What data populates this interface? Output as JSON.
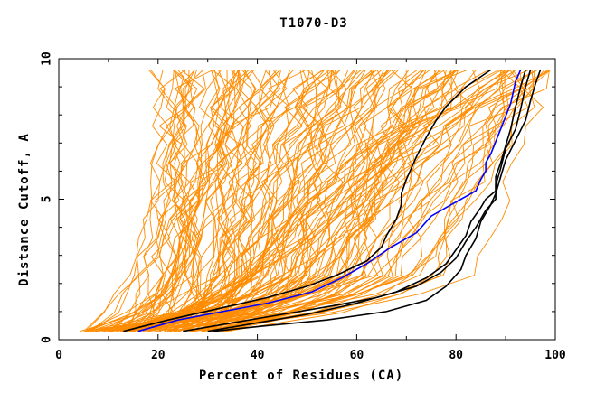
{
  "chart_data": {
    "type": "line",
    "title": "T1070-D3",
    "xlabel": "Percent of Residues (CA)",
    "ylabel": "Distance Cutoff, A",
    "xlim": [
      0,
      100
    ],
    "ylim": [
      0,
      10
    ],
    "x_ticks": [
      "0",
      "20",
      "40",
      "60",
      "80",
      "100"
    ],
    "y_ticks": [
      "0",
      "5",
      "10"
    ],
    "grid": false,
    "legend": "none",
    "colors": {
      "background_models": "#ff8c00",
      "highlight_models": "#000000",
      "best_model": "#0000ff"
    },
    "background_models_count": 150,
    "series": [
      {
        "color": "#0000ff",
        "x": [
          16,
          24,
          33,
          42,
          51,
          57,
          62,
          67,
          72,
          75,
          79,
          82,
          84,
          85,
          86,
          86,
          87,
          89,
          91,
          92,
          93
        ],
        "y": [
          0.3,
          0.7,
          1.0,
          1.3,
          1.7,
          2.2,
          2.7,
          3.3,
          3.8,
          4.4,
          4.8,
          5.1,
          5.3,
          5.7,
          6.0,
          6.3,
          6.6,
          7.5,
          8.4,
          9.2,
          9.6
        ]
      },
      {
        "color": "#000000",
        "x": [
          13,
          22,
          32,
          42,
          50,
          56,
          62,
          65,
          66,
          68,
          69,
          69,
          70,
          72,
          74,
          76,
          78,
          82,
          87
        ],
        "y": [
          0.3,
          0.7,
          1.1,
          1.5,
          1.9,
          2.3,
          2.8,
          3.3,
          3.7,
          4.3,
          4.8,
          5.2,
          5.7,
          6.5,
          7.2,
          7.8,
          8.3,
          9.0,
          9.6
        ]
      },
      {
        "color": "#000000",
        "x": [
          30,
          40,
          50,
          60,
          68,
          74,
          78,
          80,
          82,
          83,
          85,
          86,
          88,
          88,
          89,
          90,
          91,
          92,
          93,
          94
        ],
        "y": [
          0.3,
          0.6,
          0.9,
          1.3,
          1.7,
          2.2,
          2.7,
          3.2,
          3.7,
          4.2,
          4.7,
          5.0,
          5.3,
          5.8,
          6.3,
          6.9,
          7.5,
          8.3,
          9.0,
          9.6
        ]
      },
      {
        "color": "#000000",
        "x": [
          25,
          35,
          45,
          55,
          64,
          72,
          77,
          80,
          82,
          84,
          86,
          88,
          88,
          89,
          90,
          92,
          93,
          94,
          95
        ],
        "y": [
          0.3,
          0.6,
          0.9,
          1.2,
          1.5,
          1.9,
          2.4,
          2.9,
          3.5,
          4.0,
          4.6,
          5.0,
          5.5,
          6.1,
          6.8,
          7.5,
          8.2,
          9.0,
          9.6
        ]
      },
      {
        "color": "#000000",
        "x": [
          31,
          42,
          54,
          66,
          74,
          78,
          81,
          82,
          84,
          85,
          87,
          88,
          89,
          90,
          92,
          94,
          95,
          96,
          97
        ],
        "y": [
          0.3,
          0.5,
          0.7,
          1.0,
          1.4,
          1.9,
          2.5,
          3.0,
          3.6,
          4.2,
          4.8,
          5.2,
          5.8,
          6.4,
          7.1,
          7.8,
          8.5,
          9.1,
          9.6
        ]
      }
    ]
  }
}
